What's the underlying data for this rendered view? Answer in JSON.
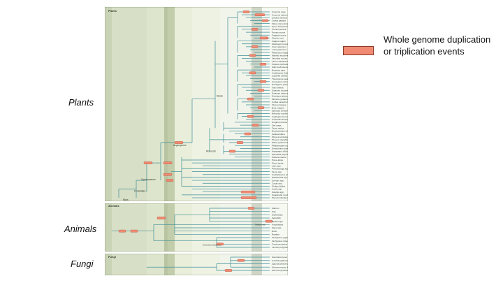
{
  "side_labels": {
    "plants": "Plants",
    "animals": "Animals",
    "fungi": "Fungi"
  },
  "legend": {
    "text": "Whole genome duplication or triplication events",
    "swatch_color": "#f08a72"
  },
  "figure": {
    "plants_panel": {
      "title": "Plants",
      "clade_labels": [
        "Angiosperms",
        "Monocots",
        "Dicots",
        "Gymnosperms",
        "Ferns/allies",
        "Moss"
      ],
      "taxa": [
        "Cucumis melo",
        "Cucumis sativus",
        "Citrullus lanatus",
        "Carica papaya",
        "Malus domestica",
        "Pyrus bretschneideri",
        "Prunus persica",
        "Prunus mume",
        "Fragaria vesca",
        "Glycine max",
        "Cajanus cajan",
        "Medicago truncatula",
        "Cicer arietinum",
        "Lotus japonicus",
        "Phaseolus vulgaris",
        "Manihot esculenta",
        "Jatropha curcas",
        "Linum usitatissimum",
        "Populus trichocarpa",
        "Salix suchowensis",
        "Brassica rapa",
        "Arabidopsis thaliana",
        "Capsella rubella",
        "Theobroma cacao",
        "Gossypium raimondii",
        "Eucalyptus grandis",
        "Vitis vinifera",
        "Solanum lycopersicum",
        "Solanum tuberosum",
        "Nicotiana tabacum",
        "Mimulus guttatus",
        "Coffea canephora",
        "Olea europaea",
        "Beta vulgaris",
        "Spinacia oleracea",
        "Nelumbo nucifera",
        "Aquilegia formosa",
        "Amborella trichopoda",
        "Sorghum bicolor",
        "Zea mays",
        "Oryza sativa",
        "Brachypodium distachyon",
        "Setaria italica",
        "Musa acuminata",
        "Phoenix dactylifera",
        "Elaeis guineensis",
        "Phalaenopsis equestris",
        "Dendrobium catenatum",
        "Asparagus officinalis",
        "Spirodela polyrhiza",
        "Zostera marina",
        "Picea abies",
        "Pinus taeda",
        "Larix spp.",
        "Pseudotsuga spp.",
        "Taxus spp.",
        "Cephalotaxus spp.",
        "Welwitschia spp.",
        "Gnetum spp.",
        "Cycas spp.",
        "Ginkgo biloba",
        "Azolla spp.",
        "Salvinia spp.",
        "Selaginella moellendorffii",
        "Physcomitrella patens"
      ]
    },
    "animals_panel": {
      "title": "Animals",
      "clade_labels": [
        "Ancestral vertebrate",
        "Teleost fish"
      ],
      "taxa": [
        "Salmon",
        "Pike",
        "Stickleback",
        "Zebrafish",
        "Spotted gar",
        "Amphibians",
        "Mammals",
        "Birds",
        "Reptiles",
        "Tachypleus gigas",
        "Tachypleus tridentatus",
        "Carcinoscorpius rotundicauda",
        "Limulus polyphemus"
      ],
      "taxa_secondary": [
        "Xenopus laevis",
        "Carassius auratus",
        "Cyprinus carpio",
        "Oncorhynchus mykiss",
        "Salmo salar"
      ]
    },
    "fungi_panel": {
      "title": "Fungi",
      "taxa": [
        "Saccharomyces cerevisiae",
        "Candida glabrata",
        "Zygosaccharomyces rouxii",
        "Kluyveromyces lactis",
        "Mucoromycotina"
      ]
    }
  }
}
